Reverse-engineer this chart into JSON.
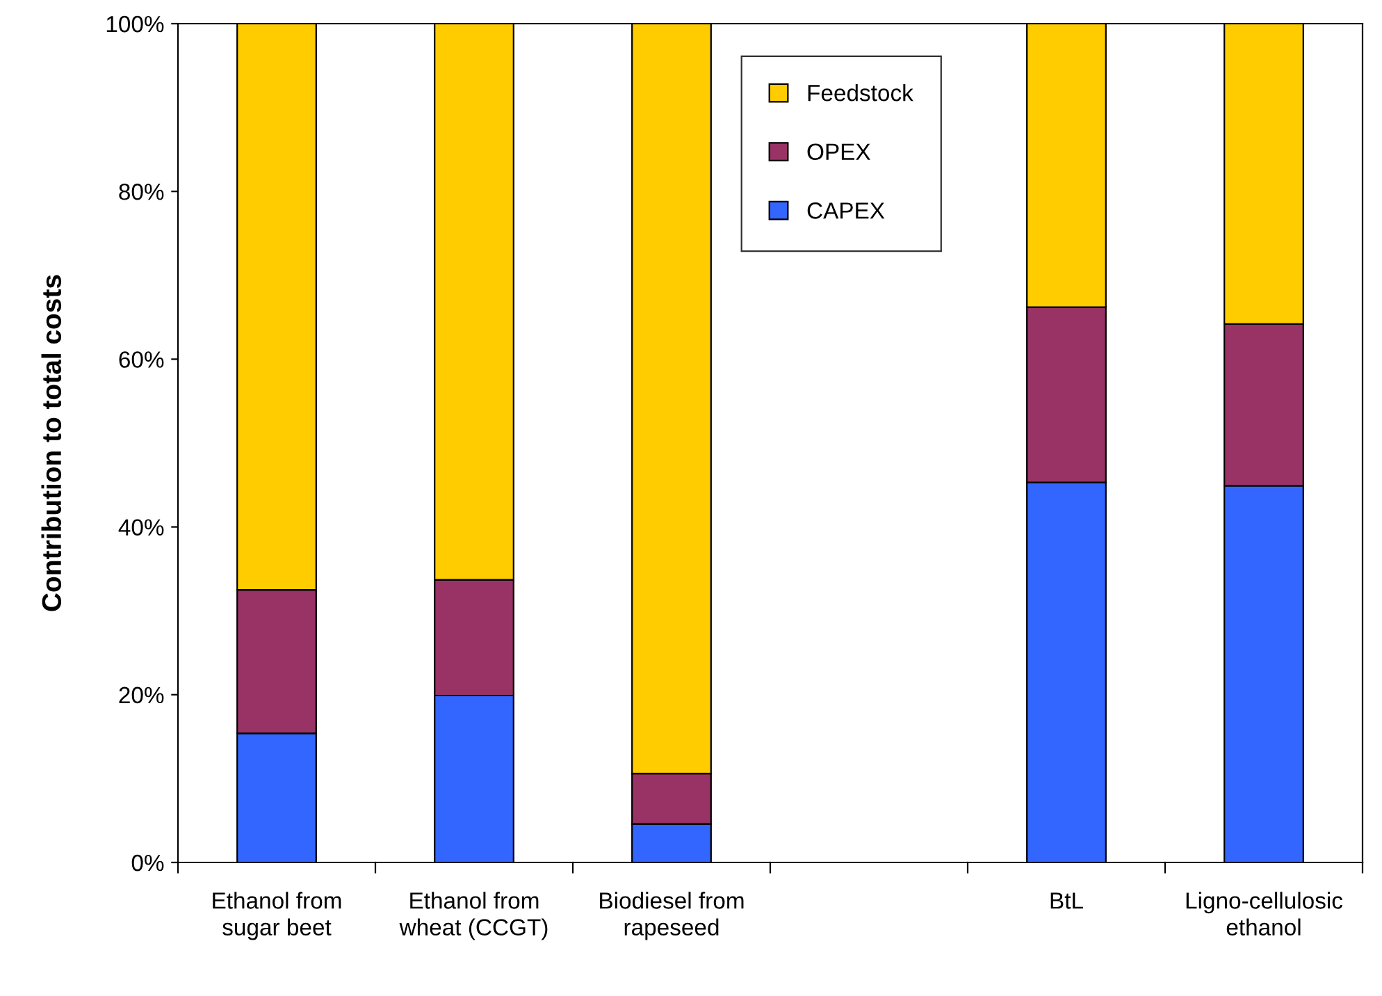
{
  "chart_data": {
    "type": "bar",
    "stacked": true,
    "ylabel": "Contribution to total costs",
    "categories": [
      "Ethanol from sugar beet",
      "Ethanol from wheat (CCGT)",
      "Biodiesel from rapeseed",
      null,
      "BtL",
      "Ligno-cellulosic ethanol"
    ],
    "series": [
      {
        "name": "CAPEX",
        "color": "#3366ff",
        "values": [
          15.4,
          19.9,
          4.6,
          null,
          45.3,
          44.9
        ]
      },
      {
        "name": "OPEX",
        "color": "#993366",
        "values": [
          17.1,
          13.8,
          6.0,
          null,
          20.9,
          19.3
        ]
      },
      {
        "name": "Feedstock",
        "color": "#ffcc00",
        "values": [
          67.5,
          66.3,
          89.4,
          null,
          33.8,
          35.8
        ]
      }
    ],
    "ylim": [
      0,
      100
    ],
    "yticks": [
      {
        "value": 0,
        "label": "0%"
      },
      {
        "value": 20,
        "label": "20%"
      },
      {
        "value": 40,
        "label": "40%"
      },
      {
        "value": 60,
        "label": "60%"
      },
      {
        "value": 80,
        "label": "80%"
      },
      {
        "value": 100,
        "label": "100%"
      }
    ],
    "grid": false,
    "legend": "top"
  }
}
